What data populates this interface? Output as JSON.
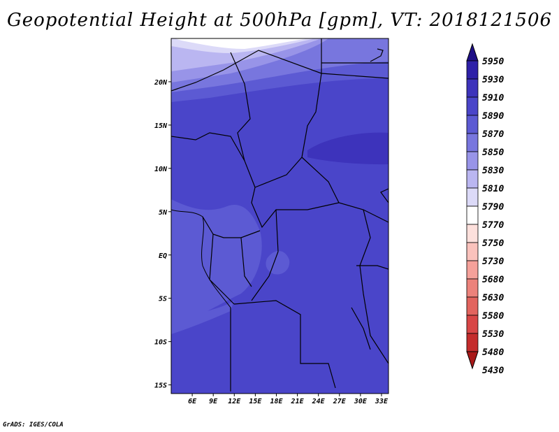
{
  "title": "Geopotential Height at 500hPa [gpm], VT: 2018121506",
  "credit": "GrADS: IGES/COLA",
  "map": {
    "lon_range": [
      3,
      34
    ],
    "lat_range": [
      -16,
      25
    ],
    "x_ticks": [
      {
        "value": 6,
        "label": "6E"
      },
      {
        "value": 9,
        "label": "9E"
      },
      {
        "value": 12,
        "label": "12E"
      },
      {
        "value": 15,
        "label": "15E"
      },
      {
        "value": 18,
        "label": "18E"
      },
      {
        "value": 21,
        "label": "21E"
      },
      {
        "value": 24,
        "label": "24E"
      },
      {
        "value": 27,
        "label": "27E"
      },
      {
        "value": 30,
        "label": "30E"
      },
      {
        "value": 33,
        "label": "33E"
      }
    ],
    "y_ticks": [
      {
        "value": 20,
        "label": "20N"
      },
      {
        "value": 15,
        "label": "15N"
      },
      {
        "value": 10,
        "label": "10N"
      },
      {
        "value": 5,
        "label": "5N"
      },
      {
        "value": 0,
        "label": "EQ"
      },
      {
        "value": -5,
        "label": "5S"
      },
      {
        "value": -10,
        "label": "10S"
      },
      {
        "value": -15,
        "label": "15S"
      }
    ]
  },
  "colorbar": {
    "levels": [
      "5950",
      "5930",
      "5910",
      "5890",
      "5870",
      "5850",
      "5830",
      "5810",
      "5790",
      "5770",
      "5750",
      "5730",
      "5680",
      "5630",
      "5580",
      "5530",
      "5480",
      "5430"
    ],
    "colors": [
      "#1e0f86",
      "#2e20a8",
      "#3d33bb",
      "#4a45c9",
      "#5c5ad3",
      "#7876de",
      "#9894e8",
      "#bab6f1",
      "#dcdaf8",
      "#ffffff",
      "#fde0dc",
      "#fac2bc",
      "#f5a19a",
      "#ec827b",
      "#e2645e",
      "#d84646",
      "#c42c2c",
      "#a81818"
    ]
  }
}
